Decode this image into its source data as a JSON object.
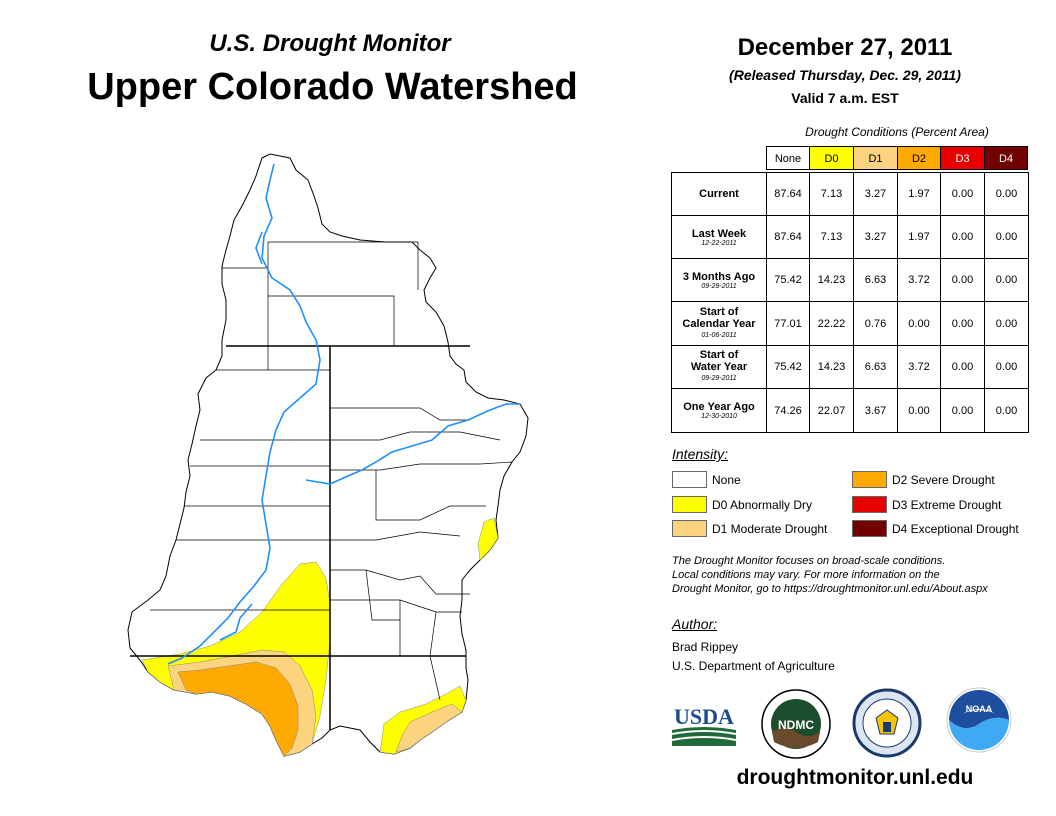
{
  "header": {
    "subtitle": "U.S. Drought Monitor",
    "title": "Upper Colorado Watershed",
    "date": "December 27, 2011",
    "released": "(Released Thursday, Dec. 29, 2011)",
    "valid": "Valid 7 a.m. EST"
  },
  "table": {
    "caption": "Drought Conditions (Percent Area)",
    "columns": [
      "None",
      "D0",
      "D1",
      "D2",
      "D3",
      "D4"
    ],
    "rows": [
      {
        "label": "Current",
        "date": "",
        "values": [
          "87.64",
          "7.13",
          "3.27",
          "1.97",
          "0.00",
          "0.00"
        ]
      },
      {
        "label": "Last Week",
        "date": "12-22-2011",
        "values": [
          "87.64",
          "7.13",
          "3.27",
          "1.97",
          "0.00",
          "0.00"
        ]
      },
      {
        "label": "3 Months Ago",
        "date": "09-29-2011",
        "values": [
          "75.42",
          "14.23",
          "6.63",
          "3.72",
          "0.00",
          "0.00"
        ]
      },
      {
        "label": "Start of Calendar Year",
        "date": "01-06-2011",
        "values": [
          "77.01",
          "22.22",
          "0.76",
          "0.00",
          "0.00",
          "0.00"
        ]
      },
      {
        "label": "Start of Water Year",
        "date": "09-29-2011",
        "values": [
          "75.42",
          "14.23",
          "6.63",
          "3.72",
          "0.00",
          "0.00"
        ]
      },
      {
        "label": "One Year Ago",
        "date": "12-30-2010",
        "values": [
          "74.26",
          "22.07",
          "3.67",
          "0.00",
          "0.00",
          "0.00"
        ]
      }
    ]
  },
  "colors": {
    "none": "#ffffff",
    "d0": "#ffff00",
    "d1": "#fcd37f",
    "d2": "#ffaa00",
    "d3": "#e60000",
    "d4": "#730000",
    "river": "#1e90ff"
  },
  "legend": {
    "title": "Intensity:",
    "items": [
      {
        "label": "None"
      },
      {
        "label": "D0 Abnormally Dry"
      },
      {
        "label": "D1 Moderate Drought"
      },
      {
        "label": "D2 Severe Drought"
      },
      {
        "label": "D3 Extreme Drought"
      },
      {
        "label": "D4 Exceptional Drought"
      }
    ]
  },
  "note": {
    "line1": "The Drought Monitor focuses on broad-scale conditions.",
    "line2": "Local conditions may vary. For more information on the",
    "line3": "Drought Monitor, go to https://droughtmonitor.unl.edu/About.aspx"
  },
  "author": {
    "heading": "Author:",
    "name": "Brad Rippey",
    "org": "U.S. Department of Agriculture"
  },
  "logos": {
    "usda": "USDA",
    "ndmc": "NDMC",
    "noaa": "NOAA"
  },
  "footer": {
    "url": "droughtmonitor.unl.edu"
  }
}
